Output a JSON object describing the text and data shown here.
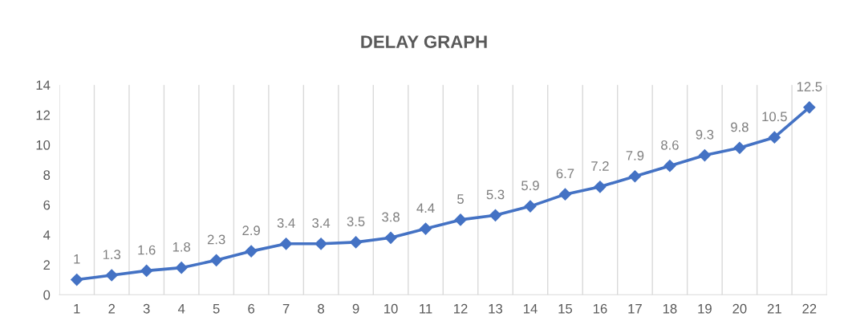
{
  "chart_data": {
    "type": "line",
    "title": "DELAY GRAPH",
    "categories": [
      "1",
      "2",
      "3",
      "4",
      "5",
      "6",
      "7",
      "8",
      "9",
      "10",
      "11",
      "12",
      "13",
      "14",
      "15",
      "16",
      "17",
      "18",
      "19",
      "20",
      "21",
      "22"
    ],
    "series": [
      {
        "color": "#4472c4",
        "values": [
          1,
          1.3,
          1.6,
          1.8,
          2.3,
          2.9,
          3.4,
          3.4,
          3.5,
          3.8,
          4.4,
          5,
          5.3,
          5.9,
          6.7,
          7.2,
          7.9,
          8.6,
          9.3,
          9.8,
          10.5,
          12.5
        ]
      }
    ],
    "ylim": [
      0,
      14
    ],
    "yticks": [
      0,
      2,
      4,
      6,
      8,
      10,
      12,
      14
    ],
    "grid": "x",
    "marker": "diamond",
    "line_style": "solid",
    "data_labels": true,
    "legend": false
  }
}
